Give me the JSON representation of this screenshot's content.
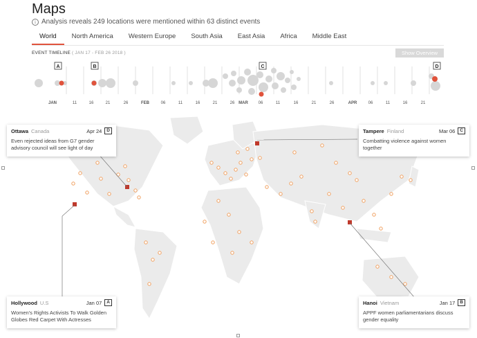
{
  "header": {
    "title": "Maps",
    "info_icon": "info-icon",
    "subtitle": "Analysis reveals 249 locations were mentioned within 63 distinct events"
  },
  "tabs": [
    {
      "label": "World",
      "active": true
    },
    {
      "label": "North America",
      "active": false
    },
    {
      "label": "Western Europe",
      "active": false
    },
    {
      "label": "South Asia",
      "active": false
    },
    {
      "label": "East Asia",
      "active": false
    },
    {
      "label": "Africa",
      "active": false
    },
    {
      "label": "Middle East",
      "active": false
    }
  ],
  "timeline": {
    "label": "EVENT TIMELINE",
    "range": "( JAN 17 - FEB 26 2018 )",
    "show_overview": "Show Overview",
    "ticks": [
      "JAN",
      "11",
      "16",
      "21",
      "26",
      "FEB",
      "06",
      "11",
      "16",
      "21",
      "26",
      "MAR",
      "06",
      "11",
      "16",
      "21",
      "26",
      "APR",
      "06",
      "11",
      "16",
      "21"
    ],
    "markers": [
      "A",
      "B",
      "C",
      "D"
    ]
  },
  "cards": [
    {
      "id": "ottawa",
      "city": "Ottawa",
      "country": "Canada",
      "date": "Apr 24",
      "tag": "D",
      "text": "Even rejected ideas from G7 gender advisory council will see light of day"
    },
    {
      "id": "tampere",
      "city": "Tampere",
      "country": "Finland",
      "date": "Mar 06",
      "tag": "C",
      "text": "Combatting violence against women together"
    },
    {
      "id": "hollywood",
      "city": "Hollywood",
      "country": "U.S",
      "date": "Jan 07",
      "tag": "A",
      "text": "Women's Rights Activists To Walk Golden Globes Red Carpet With Actresses"
    },
    {
      "id": "hanoi",
      "city": "Hanoi",
      "country": "Vietnam",
      "date": "Jan 17",
      "tag": "B",
      "text": "APPF women parliamentarians discuss gender equality"
    }
  ],
  "colors": {
    "accent": "#e0533c",
    "marker": "#c0392b",
    "bubble": "#d6d6d6",
    "land": "#ebebeb"
  }
}
